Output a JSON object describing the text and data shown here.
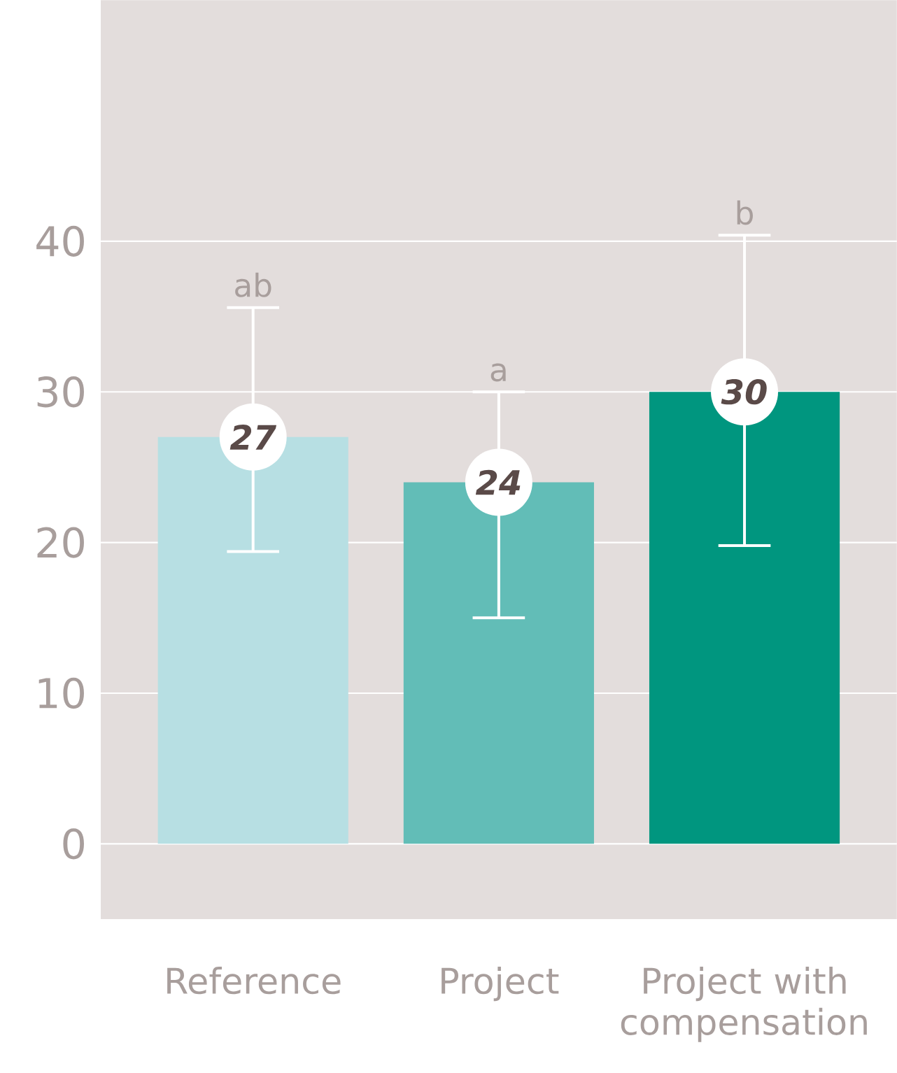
{
  "chart_data": {
    "type": "bar",
    "categories": [
      "Reference",
      "Project",
      "Project with compensation"
    ],
    "values": [
      27,
      24,
      30
    ],
    "colors": [
      "#b7dfe3",
      "#62bdb7",
      "#00967f"
    ],
    "errors": [
      [
        19.4,
        35.6
      ],
      [
        15.0,
        30.0
      ],
      [
        19.8,
        40.4
      ]
    ],
    "data_labels": true,
    "annotations": [
      {
        "text": "ab",
        "x": "Reference",
        "y": 35.6
      },
      {
        "text": "a",
        "x": "Project",
        "y": 30.0
      },
      {
        "text": "b",
        "x": "Project with compensation",
        "y": 40.4
      }
    ],
    "ylim": [
      -5,
      56
    ],
    "yticks": [
      0,
      10,
      20,
      30,
      40
    ],
    "grid": "y"
  }
}
